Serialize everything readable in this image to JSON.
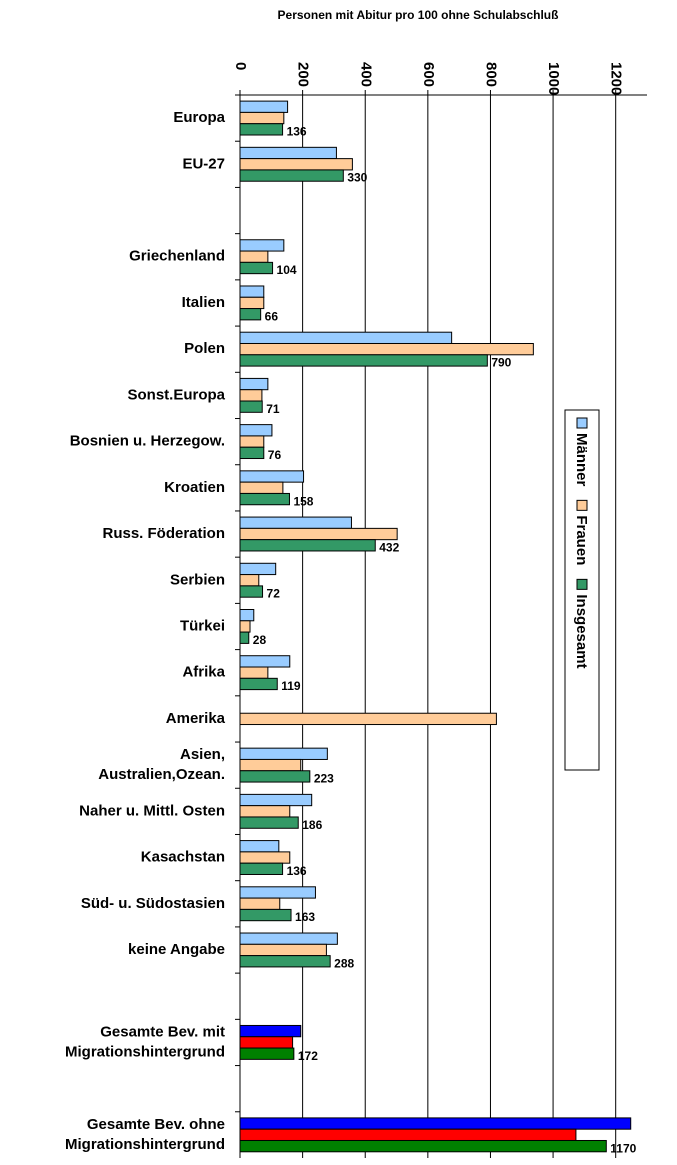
{
  "chart_data": {
    "type": "hbar",
    "title": "Personen mit Abitur pro 100 ohne Schulabschluß",
    "categories": [
      "Europa",
      "EU-27",
      null,
      "Griechenland",
      "Italien",
      "Polen",
      "Sonst.Europa",
      "Bosnien u. Herzegow.",
      "Kroatien",
      "Russ. Föderation",
      "Serbien",
      "Türkei",
      "Afrika",
      "Amerika",
      "Asien,\nAustralien,Ozean.",
      "Naher u. Mittl. Osten",
      "Kasachstan",
      "Süd- u. Südostasien",
      "keine Angabe",
      null,
      "Gesamte Bev. mit\nMigrationshintergrund",
      null,
      "Gesamte Bev. ohne\nMigrationshintergrund"
    ],
    "series": [
      {
        "name": "Männer",
        "color": "#99ccff",
        "highlight_color": "#0000ff",
        "highlighted": [
          20,
          22
        ],
        "values": [
          152,
          308,
          null,
          140,
          76,
          676,
          89,
          102,
          203,
          356,
          114,
          44,
          159,
          null,
          279,
          229,
          124,
          241,
          311,
          null,
          194,
          null,
          1248
        ]
      },
      {
        "name": "Frauen",
        "color": "#ffcc99",
        "highlight_color": "#ff0000",
        "highlighted": [
          20,
          22
        ],
        "values": [
          140,
          359,
          null,
          89,
          76,
          937,
          70,
          76,
          137,
          502,
          60,
          32,
          89,
          819,
          194,
          159,
          159,
          127,
          276,
          null,
          168,
          null,
          1073
        ]
      },
      {
        "name": "Insgesamt",
        "color": "#339966",
        "highlight_color": "#008000",
        "highlighted": [
          20,
          22
        ],
        "data_labels": true,
        "values": [
          136,
          330,
          null,
          104,
          66,
          790,
          71,
          76,
          158,
          432,
          72,
          28,
          119,
          null,
          223,
          186,
          136,
          163,
          288,
          null,
          172,
          null,
          1170
        ]
      }
    ],
    "xlim": [
      0,
      1300
    ],
    "xticks": [
      0,
      200,
      400,
      600,
      800,
      1000,
      1200
    ],
    "grid": true,
    "legend": "right"
  }
}
